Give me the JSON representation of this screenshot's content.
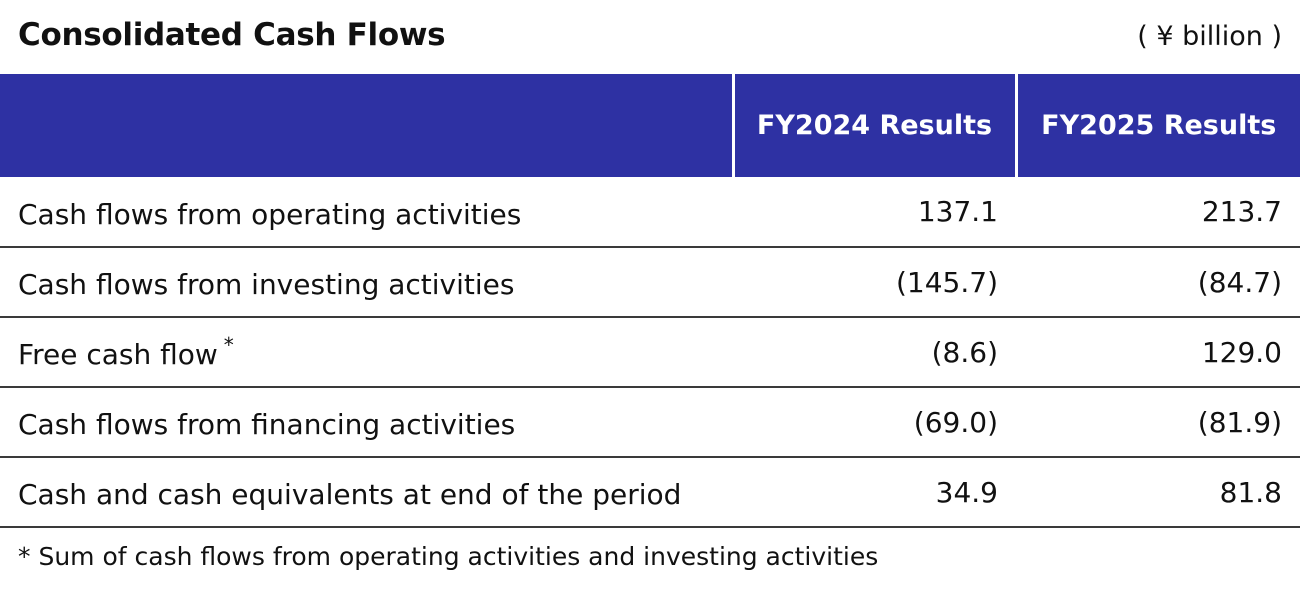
{
  "chart_data": {
    "type": "table",
    "title": "Consolidated Cash Flows",
    "unit": "( ¥ billion )",
    "columns": [
      "",
      "FY2024 Results",
      "FY2025 Results"
    ],
    "rows": [
      {
        "label": "Cash flows from operating activities",
        "mark": "",
        "values": [
          "137.1",
          "213.7"
        ]
      },
      {
        "label": "Cash flows from investing activities",
        "mark": "",
        "values": [
          "(145.7)",
          "(84.7)"
        ]
      },
      {
        "label": "Free cash flow",
        "mark": "*",
        "values": [
          "(8.6)",
          "129.0"
        ]
      },
      {
        "label": "Cash flows from financing activities",
        "mark": "",
        "values": [
          "(69.0)",
          "(81.9)"
        ]
      },
      {
        "label": "Cash and cash equivalents at end of the period",
        "mark": "",
        "values": [
          "34.9",
          "81.8"
        ]
      }
    ],
    "footnote": "* Sum of cash flows from operating activities and investing activities",
    "colors": {
      "header_background": "#2e31a3",
      "header_text": "#ffffff",
      "row_divider": "#3a3a3a"
    }
  }
}
